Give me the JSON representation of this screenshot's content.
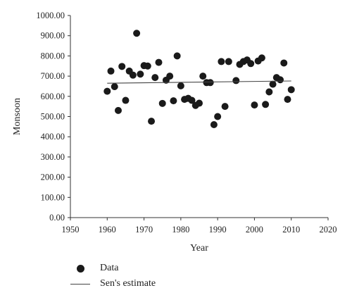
{
  "chart_data": {
    "type": "scatter",
    "title": "",
    "xlabel": "Year",
    "ylabel": "Monsoon",
    "xlim": [
      1950,
      2020
    ],
    "ylim": [
      0,
      1000
    ],
    "x_ticks": [
      "1950",
      "1960",
      "1970",
      "1980",
      "1990",
      "2000",
      "2010",
      "2020"
    ],
    "y_ticks": [
      "0.00",
      "100.00",
      "200.00",
      "300.00",
      "400.00",
      "500.00",
      "600.00",
      "700.00",
      "800.00",
      "900.00",
      "1000.00"
    ],
    "grid": false,
    "legend_position": "bottom-left",
    "series": [
      {
        "name": "Data",
        "marker": "filled-circle",
        "color": "#1a1a1a",
        "points": [
          [
            1960,
            625
          ],
          [
            1961,
            725
          ],
          [
            1962,
            648
          ],
          [
            1963,
            530
          ],
          [
            1964,
            748
          ],
          [
            1965,
            580
          ],
          [
            1966,
            725
          ],
          [
            1967,
            705
          ],
          [
            1968,
            912
          ],
          [
            1969,
            710
          ],
          [
            1970,
            752
          ],
          [
            1971,
            750
          ],
          [
            1972,
            477
          ],
          [
            1973,
            693
          ],
          [
            1974,
            768
          ],
          [
            1975,
            565
          ],
          [
            1976,
            680
          ],
          [
            1977,
            700
          ],
          [
            1978,
            578
          ],
          [
            1979,
            800
          ],
          [
            1980,
            652
          ],
          [
            1981,
            585
          ],
          [
            1982,
            590
          ],
          [
            1983,
            580
          ],
          [
            1984,
            555
          ],
          [
            1985,
            566
          ],
          [
            1986,
            700
          ],
          [
            1987,
            668
          ],
          [
            1988,
            668
          ],
          [
            1989,
            460
          ],
          [
            1990,
            500
          ],
          [
            1991,
            772
          ],
          [
            1992,
            550
          ],
          [
            1993,
            772
          ],
          [
            1995,
            678
          ],
          [
            1996,
            758
          ],
          [
            1997,
            772
          ],
          [
            1998,
            780
          ],
          [
            1999,
            762
          ],
          [
            2000,
            557
          ],
          [
            2001,
            775
          ],
          [
            2002,
            790
          ],
          [
            2003,
            560
          ],
          [
            2004,
            622
          ],
          [
            2005,
            660
          ],
          [
            2006,
            693
          ],
          [
            2007,
            682
          ],
          [
            2008,
            765
          ],
          [
            2009,
            585
          ],
          [
            2010,
            633
          ]
        ]
      },
      {
        "name": "Sen's estimate",
        "type": "line",
        "color": "#444444",
        "points": [
          [
            1960,
            665
          ],
          [
            2010,
            676
          ]
        ]
      }
    ]
  },
  "legend": {
    "items": [
      {
        "label": "Data"
      },
      {
        "label": "Sen's estimate"
      }
    ]
  }
}
